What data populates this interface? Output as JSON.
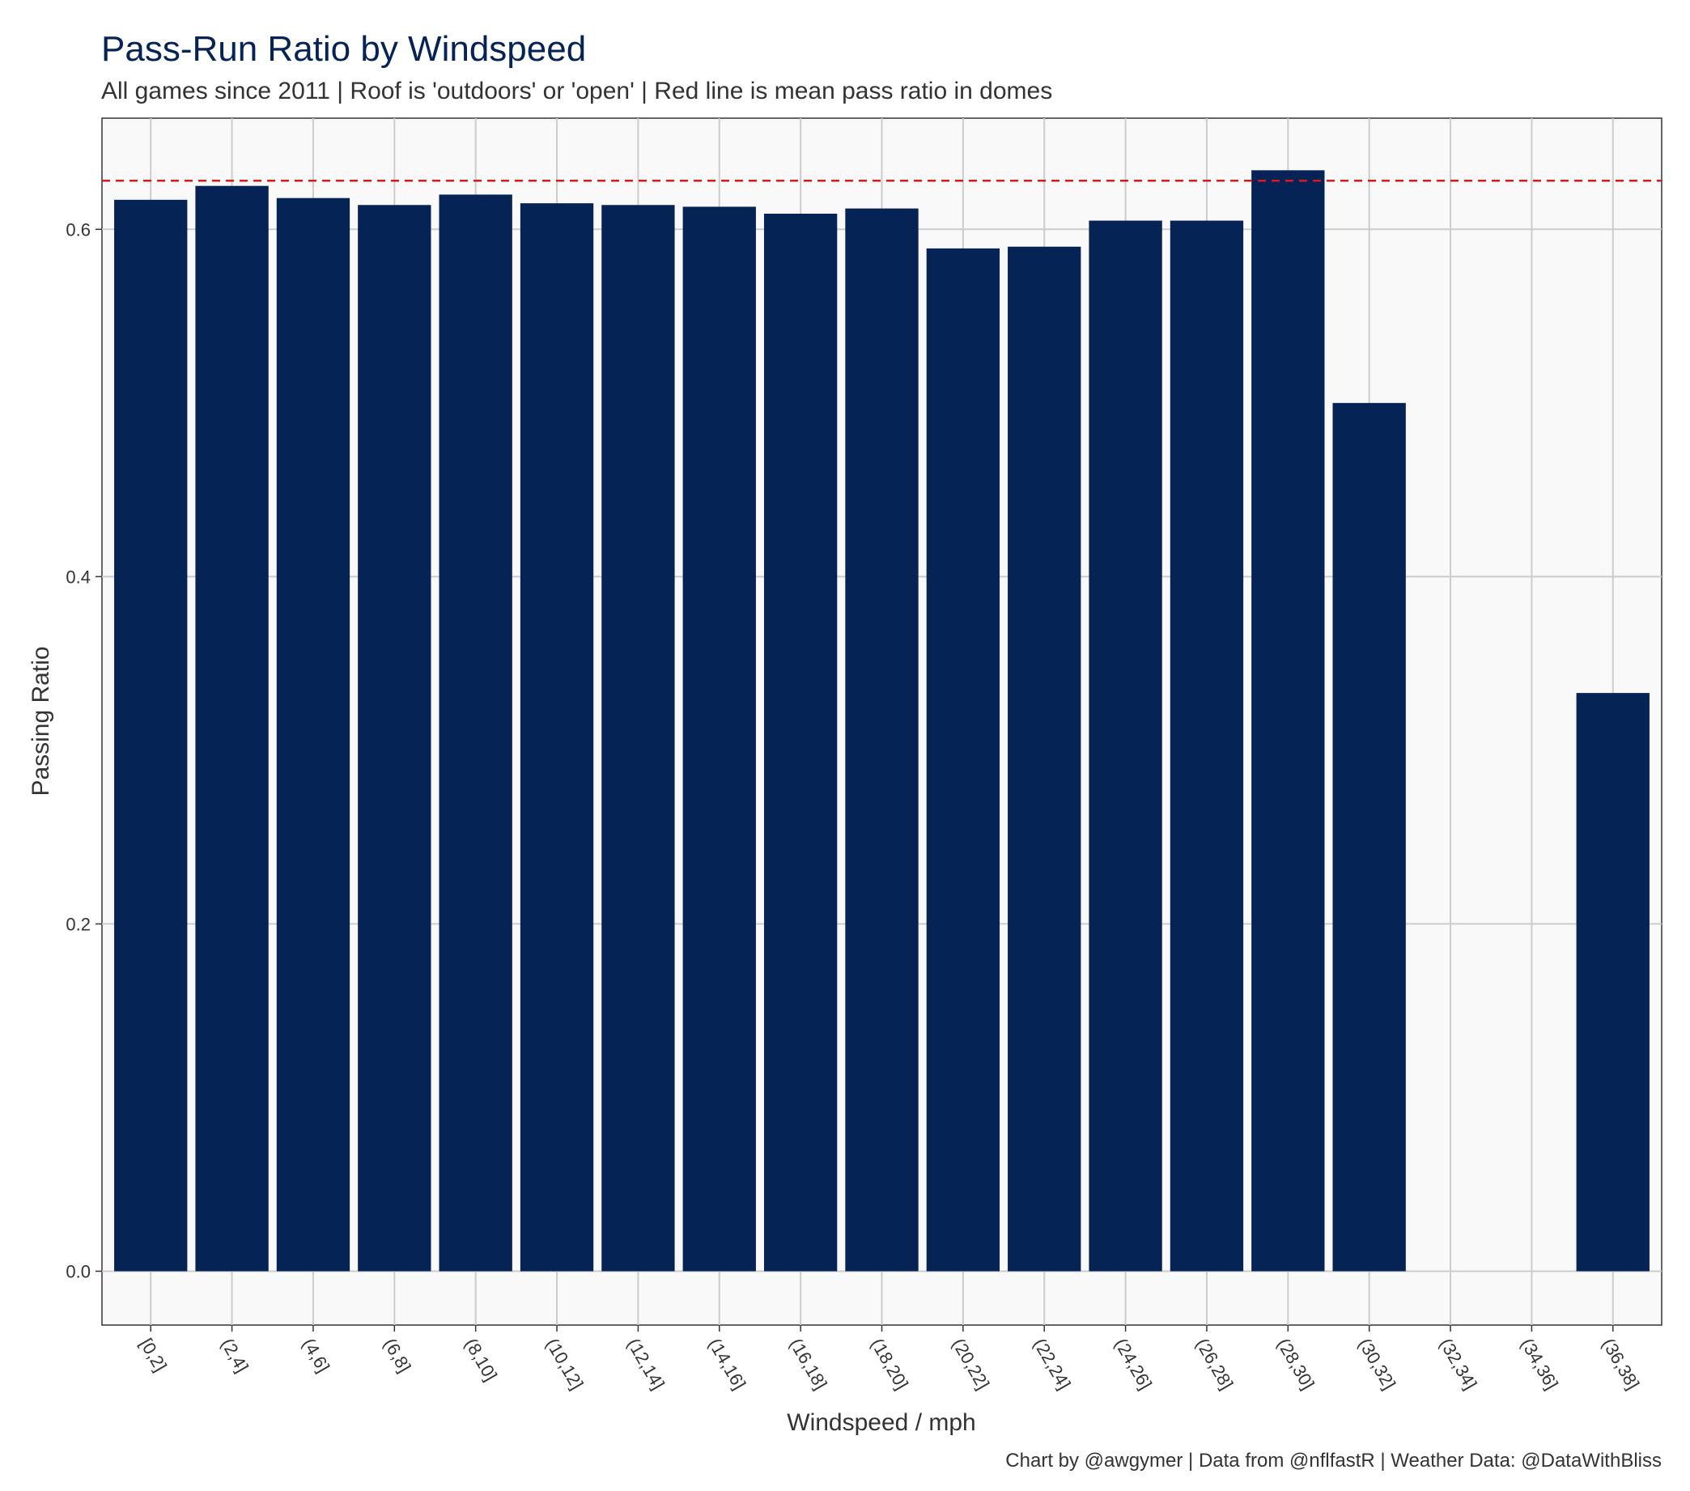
{
  "chart_data": {
    "type": "bar",
    "title": "Pass-Run Ratio by Windspeed",
    "subtitle": "All games since 2011 | Roof is 'outdoors' or 'open' | Red line is mean pass ratio in domes",
    "caption": "Chart by @awgymer | Data from @nflfastR | Weather Data: @DataWithBliss",
    "xlabel": "Windspeed / mph",
    "ylabel": "Passing Ratio",
    "categories": [
      "[0,2]",
      "(2,4]",
      "(4,6]",
      "(6,8]",
      "(8,10]",
      "(10,12]",
      "(12,14]",
      "(14,16]",
      "(16,18]",
      "(18,20]",
      "(20,22]",
      "(22,24]",
      "(24,26]",
      "(26,28]",
      "(28,30]",
      "(30,32]",
      "(32,34]",
      "(34,36]",
      "(36,38]"
    ],
    "values": [
      0.617,
      0.625,
      0.618,
      0.614,
      0.62,
      0.615,
      0.614,
      0.613,
      0.609,
      0.612,
      0.589,
      0.59,
      0.605,
      0.605,
      0.634,
      0.5,
      null,
      null,
      0.333
    ],
    "reference_line": {
      "value": 0.628,
      "color": "#d7191c",
      "style": "dashed"
    },
    "ylim": [
      -0.031,
      0.664
    ],
    "yticks": [
      0.0,
      0.2,
      0.4,
      0.6
    ],
    "ytick_labels": [
      "0.0",
      "0.2",
      "0.4",
      "0.6"
    ],
    "grid": true,
    "colors": {
      "bar": "#062356",
      "panel_background": "#f9f9f9",
      "grid": "#cccccc",
      "title": "#062356",
      "text": "#333333"
    }
  }
}
